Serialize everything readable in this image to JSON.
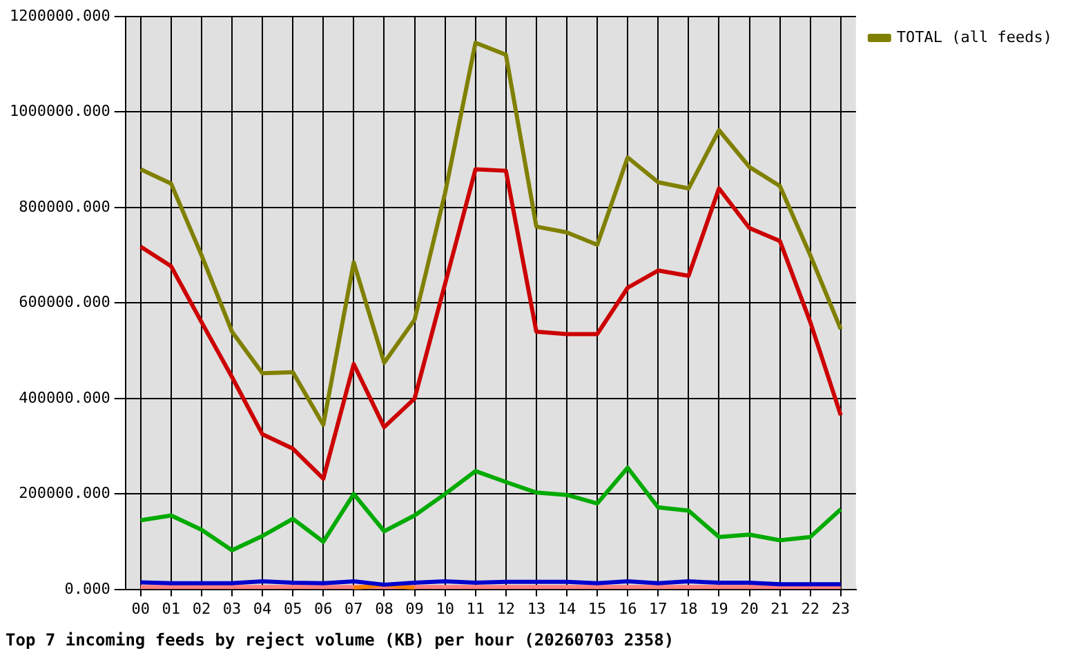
{
  "chart_data": {
    "type": "line",
    "title": "Top 7 incoming feeds by reject volume (KB) per hour (20260703 2358)",
    "categories": [
      "00",
      "01",
      "02",
      "03",
      "04",
      "05",
      "06",
      "07",
      "08",
      "09",
      "10",
      "11",
      "12",
      "13",
      "14",
      "15",
      "16",
      "17",
      "18",
      "19",
      "20",
      "21",
      "22",
      "23"
    ],
    "series": [
      {
        "color": "#cc0000",
        "values": [
          718000,
          677000,
          560000,
          445000,
          325000,
          295000,
          232000,
          472000,
          340000,
          400000,
          640000,
          880000,
          877000,
          540000,
          535000,
          535000,
          632000,
          668000,
          657000,
          840000,
          757000,
          730000,
          560000,
          365000
        ]
      },
      {
        "color": "#00aa00",
        "values": [
          145000,
          155000,
          125000,
          82000,
          112000,
          148000,
          100000,
          200000,
          122000,
          155000,
          200000,
          248000,
          225000,
          203000,
          198000,
          180000,
          255000,
          172000,
          165000,
          110000,
          115000,
          103000,
          110000,
          168000
        ]
      },
      {
        "color": "#0000cc",
        "values": [
          15000,
          13000,
          13000,
          13000,
          17000,
          14000,
          13000,
          17000,
          10000,
          14000,
          17000,
          14000,
          16000,
          16000,
          16000,
          13000,
          17000,
          13000,
          17000,
          14000,
          14000,
          11000,
          11000,
          11000
        ]
      },
      {
        "color": "#ff8000",
        "values": [
          null,
          null,
          null,
          null,
          null,
          null,
          null,
          3000,
          10000,
          3000,
          null,
          null,
          null,
          null,
          null,
          null,
          null,
          null,
          null,
          null,
          null,
          null,
          null,
          null
        ]
      },
      {
        "color": "#ff8080",
        "values": [
          5000,
          5000,
          5000,
          5000,
          5000,
          5000,
          5000,
          5000,
          5000,
          5000,
          5000,
          5000,
          5000,
          5000,
          5000,
          5000,
          5000,
          5000,
          5000,
          5000,
          5000,
          5000,
          5000,
          5000
        ]
      },
      {
        "name": "TOTAL (all feeds)",
        "color": "#808000",
        "values": [
          880000,
          850000,
          700000,
          540000,
          453000,
          455000,
          345000,
          685000,
          475000,
          565000,
          830000,
          1145000,
          1120000,
          760000,
          748000,
          722000,
          905000,
          853000,
          840000,
          962000,
          885000,
          845000,
          700000,
          545000
        ]
      }
    ],
    "ylim": [
      0,
      1200000
    ],
    "yticks": [
      {
        "value": 0,
        "label": "0.000"
      },
      {
        "value": 200000,
        "label": "200000.000"
      },
      {
        "value": 400000,
        "label": "400000.000"
      },
      {
        "value": 600000,
        "label": "600000.000"
      },
      {
        "value": 800000,
        "label": "800000.000"
      },
      {
        "value": 1000000,
        "label": "1000000.000"
      },
      {
        "value": 1200000,
        "label": "1200000.000"
      }
    ],
    "grid": true,
    "legend": "right",
    "marker": "none",
    "line_style": "solid"
  }
}
